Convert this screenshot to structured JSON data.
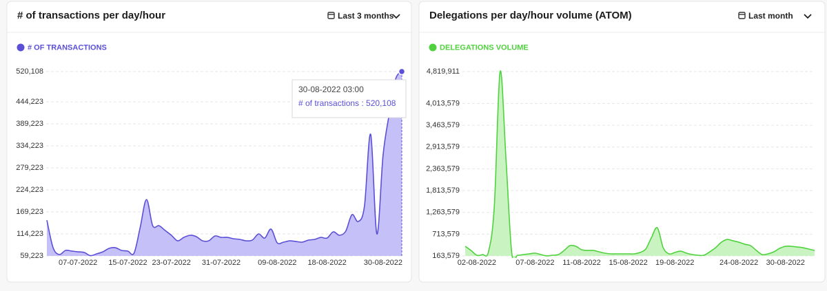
{
  "chart_data": [
    {
      "type": "area",
      "title": "# of transactions per day/hour",
      "filter": "Last 3 months",
      "categories": [
        null,
        null,
        null,
        null,
        null,
        "07-07-2022",
        null,
        null,
        null,
        null,
        null,
        null,
        null,
        "15-07-2022",
        null,
        null,
        null,
        null,
        null,
        null,
        "23-07-2022",
        null,
        null,
        null,
        null,
        null,
        null,
        null,
        "31-07-2022",
        null,
        null,
        null,
        null,
        null,
        null,
        null,
        null,
        "09-08-2022",
        null,
        null,
        null,
        null,
        null,
        null,
        null,
        "18-08-2022",
        null,
        null,
        null,
        null,
        null,
        null,
        null,
        null,
        "30-08-2022",
        null,
        null,
        null
      ],
      "series": [
        {
          "name": "# of transactions",
          "color": "#5a4fd6",
          "fill": "#c6c0f8",
          "values": [
            148600,
            79800,
            62700,
            73000,
            71300,
            69500,
            67800,
            60000,
            64400,
            69500,
            78100,
            79800,
            73000,
            71300,
            66100,
            131400,
            200100,
            134800,
            134800,
            122800,
            110800,
            97000,
            105600,
            110800,
            107400,
            97000,
            97000,
            109100,
            105600,
            105600,
            102200,
            100500,
            97000,
            98800,
            114200,
            103900,
            126300,
            91900,
            93600,
            97000,
            95300,
            93600,
            98800,
            100500,
            105600,
            103900,
            119400,
            110800,
            121100,
            162300,
            145200,
            183000,
            363400,
            114200,
            311900,
            415000,
            500900,
            520108
          ]
        }
      ],
      "ylim": [
        59223,
        520108
      ],
      "yticks": [
        {
          "value": 59223,
          "label": "59,223"
        },
        {
          "value": 114223,
          "label": "114,223"
        },
        {
          "value": 169223,
          "label": "169,223"
        },
        {
          "value": 224223,
          "label": "224,223"
        },
        {
          "value": 279223,
          "label": "279,223"
        },
        {
          "value": 334223,
          "label": "334,223"
        },
        {
          "value": 389223,
          "label": "389,223"
        },
        {
          "value": 444223,
          "label": "444,223"
        },
        {
          "value": 520108,
          "label": "520,108"
        }
      ],
      "grid": true,
      "tooltip": {
        "title": "30-08-2022 03:00",
        "text": "# of transactions : 520,108"
      }
    },
    {
      "type": "area",
      "title": "Delegations per day/hour volume (ATOM)",
      "filter": "Last month",
      "categories": [
        null,
        null,
        "02-08-2022",
        null,
        null,
        null,
        null,
        null,
        null,
        null,
        null,
        null,
        "07-08-2022",
        null,
        null,
        null,
        null,
        null,
        null,
        null,
        "11-08-2022",
        null,
        null,
        null,
        null,
        null,
        null,
        null,
        "15-08-2022",
        null,
        null,
        null,
        null,
        null,
        null,
        null,
        "19-08-2022",
        null,
        null,
        null,
        null,
        null,
        null,
        null,
        null,
        null,
        null,
        "24-08-2022",
        null,
        null,
        null,
        null,
        null,
        null,
        null,
        "30-08-2022",
        null,
        null,
        null,
        null,
        null
      ],
      "series": [
        {
          "name": "Delegations volume",
          "color": "#4fd23e",
          "fill": "#c9f3c1",
          "values": [
            406100,
            302200,
            180900,
            198200,
            267500,
            1410800,
            4819911,
            2623400,
            232900,
            180900,
            198200,
            215500,
            232900,
            198200,
            165000,
            180900,
            198200,
            302200,
            423400,
            406100,
            319500,
            302200,
            302200,
            267500,
            232900,
            215500,
            215500,
            215500,
            215500,
            215500,
            250200,
            336800,
            631300,
            873800,
            371500,
            215500,
            250200,
            284800,
            232900,
            198200,
            180900,
            180900,
            267500,
            371500,
            510000,
            579300,
            544700,
            510000,
            458100,
            423400,
            302200,
            198200,
            215500,
            267500,
            354100,
            406100,
            406100,
            388800,
            371500,
            336800,
            302200
          ]
        }
      ],
      "ylim": [
        163579,
        4819911
      ],
      "yticks": [
        {
          "value": 163579,
          "label": "163,579"
        },
        {
          "value": 713579,
          "label": "713,579"
        },
        {
          "value": 1263579,
          "label": "1,263,579"
        },
        {
          "value": 1813579,
          "label": "1,813,579"
        },
        {
          "value": 2363579,
          "label": "2,363,579"
        },
        {
          "value": 2913579,
          "label": "2,913,579"
        },
        {
          "value": 3463579,
          "label": "3,463,579"
        },
        {
          "value": 4013579,
          "label": "4,013,579"
        },
        {
          "value": 4819911,
          "label": "4,819,911"
        }
      ],
      "grid": true
    }
  ]
}
